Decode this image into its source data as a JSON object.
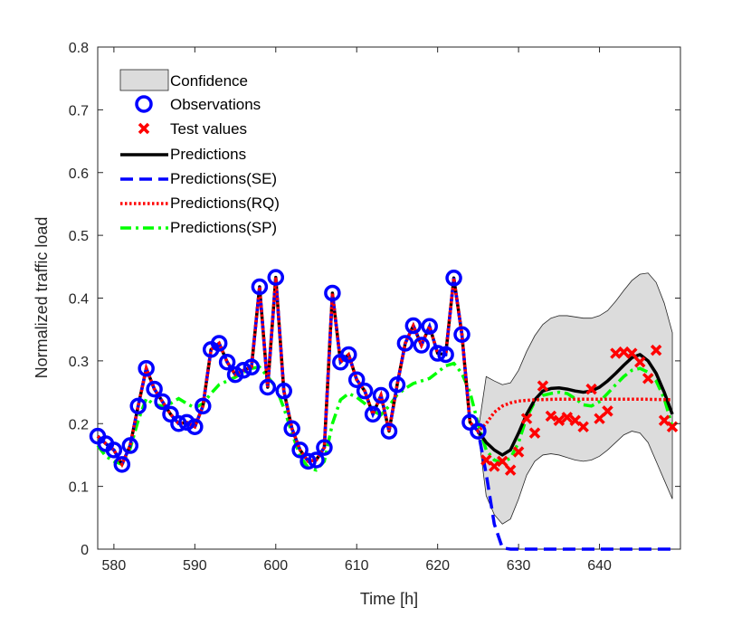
{
  "chart_data": {
    "type": "line",
    "title": "",
    "xlabel": "Time [h]",
    "ylabel": "Normalized traffic load",
    "xlim": [
      578,
      650
    ],
    "ylim": [
      0,
      0.8
    ],
    "xticks": [
      580,
      590,
      600,
      610,
      620,
      630,
      640
    ],
    "yticks": [
      0,
      0.1,
      0.2,
      0.3,
      0.4,
      0.5,
      0.6,
      0.7,
      0.8
    ],
    "grid": false,
    "legend_position": "top-left",
    "legend": {
      "confidence": "Confidence",
      "observations": "Observations",
      "test_values": "Test values",
      "predictions": "Predictions",
      "predictions_se": "Predictions(SE)",
      "predictions_rq": "Predictions(RQ)",
      "predictions_sp": "Predictions(SP)"
    },
    "colors": {
      "confidence_fill": "#dcdcdc",
      "observations": "#0000ff",
      "test_values": "#ff0000",
      "predictions": "#000000",
      "predictions_se": "#0000ff",
      "predictions_rq": "#ff0000",
      "predictions_sp": "#00ff00"
    },
    "observations": {
      "x": [
        578,
        579,
        580,
        581,
        582,
        583,
        584,
        585,
        586,
        587,
        588,
        589,
        590,
        591,
        592,
        593,
        594,
        595,
        596,
        597,
        598,
        599,
        600,
        601,
        602,
        603,
        604,
        605,
        606,
        607,
        608,
        609,
        610,
        611,
        612,
        613,
        614,
        615,
        616,
        617,
        618,
        619,
        620,
        621,
        622,
        623,
        624,
        625
      ],
      "y": [
        0.18,
        0.168,
        0.158,
        0.135,
        0.165,
        0.228,
        0.288,
        0.255,
        0.235,
        0.215,
        0.2,
        0.202,
        0.195,
        0.228,
        0.318,
        0.328,
        0.298,
        0.278,
        0.285,
        0.29,
        0.418,
        0.258,
        0.433,
        0.252,
        0.192,
        0.158,
        0.14,
        0.142,
        0.162,
        0.408,
        0.298,
        0.31,
        0.27,
        0.252,
        0.215,
        0.245,
        0.188,
        0.262,
        0.328,
        0.356,
        0.325,
        0.355,
        0.312,
        0.31,
        0.432,
        0.342,
        0.202,
        0.188
      ]
    },
    "test_values": {
      "x": [
        626,
        627,
        628,
        629,
        630,
        631,
        632,
        633,
        634,
        635,
        636,
        637,
        638,
        639,
        640,
        641,
        642,
        643,
        644,
        645,
        646,
        647,
        648,
        649
      ],
      "y": [
        0.142,
        0.132,
        0.14,
        0.126,
        0.155,
        0.208,
        0.185,
        0.26,
        0.212,
        0.205,
        0.21,
        0.205,
        0.195,
        0.255,
        0.208,
        0.22,
        0.312,
        0.314,
        0.312,
        0.298,
        0.272,
        0.317,
        0.205,
        0.195
      ]
    },
    "predictions": {
      "x": [
        578,
        579,
        580,
        581,
        582,
        583,
        584,
        585,
        586,
        587,
        588,
        589,
        590,
        591,
        592,
        593,
        594,
        595,
        596,
        597,
        598,
        599,
        600,
        601,
        602,
        603,
        604,
        605,
        606,
        607,
        608,
        609,
        610,
        611,
        612,
        613,
        614,
        615,
        616,
        617,
        618,
        619,
        620,
        621,
        622,
        623,
        624,
        625,
        626,
        627,
        628,
        629,
        630,
        631,
        632,
        633,
        634,
        635,
        636,
        637,
        638,
        639,
        640,
        641,
        642,
        643,
        644,
        645,
        646,
        647,
        648,
        649
      ],
      "y": [
        0.18,
        0.168,
        0.158,
        0.135,
        0.165,
        0.228,
        0.288,
        0.255,
        0.235,
        0.215,
        0.2,
        0.202,
        0.195,
        0.228,
        0.318,
        0.328,
        0.298,
        0.278,
        0.285,
        0.29,
        0.418,
        0.258,
        0.433,
        0.252,
        0.192,
        0.158,
        0.14,
        0.142,
        0.162,
        0.408,
        0.298,
        0.31,
        0.27,
        0.252,
        0.215,
        0.245,
        0.188,
        0.262,
        0.328,
        0.356,
        0.325,
        0.355,
        0.312,
        0.31,
        0.432,
        0.342,
        0.202,
        0.188,
        0.17,
        0.158,
        0.15,
        0.158,
        0.185,
        0.215,
        0.238,
        0.252,
        0.256,
        0.257,
        0.255,
        0.252,
        0.25,
        0.252,
        0.258,
        0.268,
        0.28,
        0.293,
        0.305,
        0.31,
        0.3,
        0.28,
        0.25,
        0.215
      ]
    },
    "predictions_se": {
      "x": [
        578,
        579,
        580,
        581,
        582,
        583,
        584,
        585,
        586,
        587,
        588,
        589,
        590,
        591,
        592,
        593,
        594,
        595,
        596,
        597,
        598,
        599,
        600,
        601,
        602,
        603,
        604,
        605,
        606,
        607,
        608,
        609,
        610,
        611,
        612,
        613,
        614,
        615,
        616,
        617,
        618,
        619,
        620,
        621,
        622,
        623,
        624,
        625,
        626,
        627,
        628,
        629,
        630,
        635,
        640,
        645,
        649
      ],
      "y": [
        0.18,
        0.168,
        0.158,
        0.135,
        0.165,
        0.228,
        0.288,
        0.255,
        0.235,
        0.215,
        0.2,
        0.202,
        0.195,
        0.228,
        0.318,
        0.328,
        0.298,
        0.278,
        0.285,
        0.29,
        0.418,
        0.258,
        0.433,
        0.252,
        0.192,
        0.158,
        0.14,
        0.142,
        0.162,
        0.408,
        0.298,
        0.31,
        0.27,
        0.252,
        0.215,
        0.245,
        0.188,
        0.262,
        0.328,
        0.356,
        0.325,
        0.355,
        0.312,
        0.31,
        0.432,
        0.342,
        0.202,
        0.188,
        0.12,
        0.04,
        0.002,
        0.0,
        0.0,
        0.0,
        0.0,
        0.0,
        0.0
      ]
    },
    "predictions_rq": {
      "x": [
        578,
        579,
        580,
        581,
        582,
        583,
        584,
        585,
        586,
        587,
        588,
        589,
        590,
        591,
        592,
        593,
        594,
        595,
        596,
        597,
        598,
        599,
        600,
        601,
        602,
        603,
        604,
        605,
        606,
        607,
        608,
        609,
        610,
        611,
        612,
        613,
        614,
        615,
        616,
        617,
        618,
        619,
        620,
        621,
        622,
        623,
        624,
        625,
        626,
        627,
        628,
        629,
        630,
        632,
        635,
        640,
        645,
        649
      ],
      "y": [
        0.18,
        0.168,
        0.158,
        0.135,
        0.165,
        0.228,
        0.288,
        0.255,
        0.235,
        0.215,
        0.2,
        0.202,
        0.195,
        0.228,
        0.318,
        0.328,
        0.298,
        0.278,
        0.285,
        0.29,
        0.418,
        0.258,
        0.433,
        0.252,
        0.192,
        0.158,
        0.14,
        0.142,
        0.162,
        0.408,
        0.298,
        0.31,
        0.27,
        0.252,
        0.215,
        0.245,
        0.188,
        0.262,
        0.328,
        0.356,
        0.325,
        0.355,
        0.312,
        0.31,
        0.432,
        0.342,
        0.202,
        0.188,
        0.2,
        0.218,
        0.228,
        0.233,
        0.236,
        0.238,
        0.239,
        0.239,
        0.239,
        0.238
      ]
    },
    "predictions_sp": {
      "x": [
        578,
        579,
        580,
        581,
        582,
        583,
        584,
        585,
        586,
        587,
        588,
        589,
        590,
        591,
        592,
        593,
        594,
        595,
        596,
        597,
        598,
        599,
        600,
        601,
        602,
        603,
        604,
        605,
        606,
        607,
        608,
        609,
        610,
        611,
        612,
        613,
        614,
        615,
        616,
        617,
        618,
        619,
        620,
        621,
        622,
        623,
        624,
        625,
        626,
        627,
        628,
        629,
        630,
        631,
        632,
        633,
        634,
        635,
        636,
        637,
        638,
        639,
        640,
        641,
        642,
        643,
        644,
        645,
        646,
        647,
        648,
        649
      ],
      "y": [
        0.165,
        0.148,
        0.14,
        0.135,
        0.16,
        0.205,
        0.24,
        0.23,
        0.228,
        0.232,
        0.24,
        0.232,
        0.225,
        0.232,
        0.248,
        0.262,
        0.268,
        0.274,
        0.282,
        0.288,
        0.29,
        0.275,
        0.258,
        0.225,
        0.185,
        0.148,
        0.13,
        0.126,
        0.14,
        0.2,
        0.238,
        0.248,
        0.242,
        0.232,
        0.22,
        0.214,
        0.228,
        0.246,
        0.256,
        0.264,
        0.268,
        0.272,
        0.282,
        0.292,
        0.296,
        0.28,
        0.25,
        0.2,
        0.158,
        0.142,
        0.138,
        0.145,
        0.17,
        0.21,
        0.235,
        0.245,
        0.248,
        0.25,
        0.248,
        0.24,
        0.23,
        0.228,
        0.235,
        0.248,
        0.262,
        0.275,
        0.285,
        0.288,
        0.282,
        0.268,
        0.24,
        0.195
      ]
    },
    "confidence": {
      "x": [
        625,
        626,
        627,
        628,
        629,
        630,
        631,
        632,
        633,
        634,
        635,
        636,
        637,
        638,
        639,
        640,
        641,
        642,
        643,
        644,
        645,
        646,
        647,
        648,
        649
      ],
      "upper": [
        0.188,
        0.275,
        0.268,
        0.262,
        0.265,
        0.285,
        0.315,
        0.34,
        0.358,
        0.368,
        0.372,
        0.372,
        0.37,
        0.368,
        0.368,
        0.372,
        0.38,
        0.395,
        0.412,
        0.428,
        0.438,
        0.44,
        0.425,
        0.392,
        0.345
      ],
      "lower": [
        0.188,
        0.085,
        0.055,
        0.04,
        0.048,
        0.08,
        0.118,
        0.14,
        0.15,
        0.152,
        0.15,
        0.146,
        0.142,
        0.14,
        0.142,
        0.148,
        0.158,
        0.17,
        0.182,
        0.188,
        0.185,
        0.17,
        0.14,
        0.11,
        0.08
      ]
    }
  }
}
